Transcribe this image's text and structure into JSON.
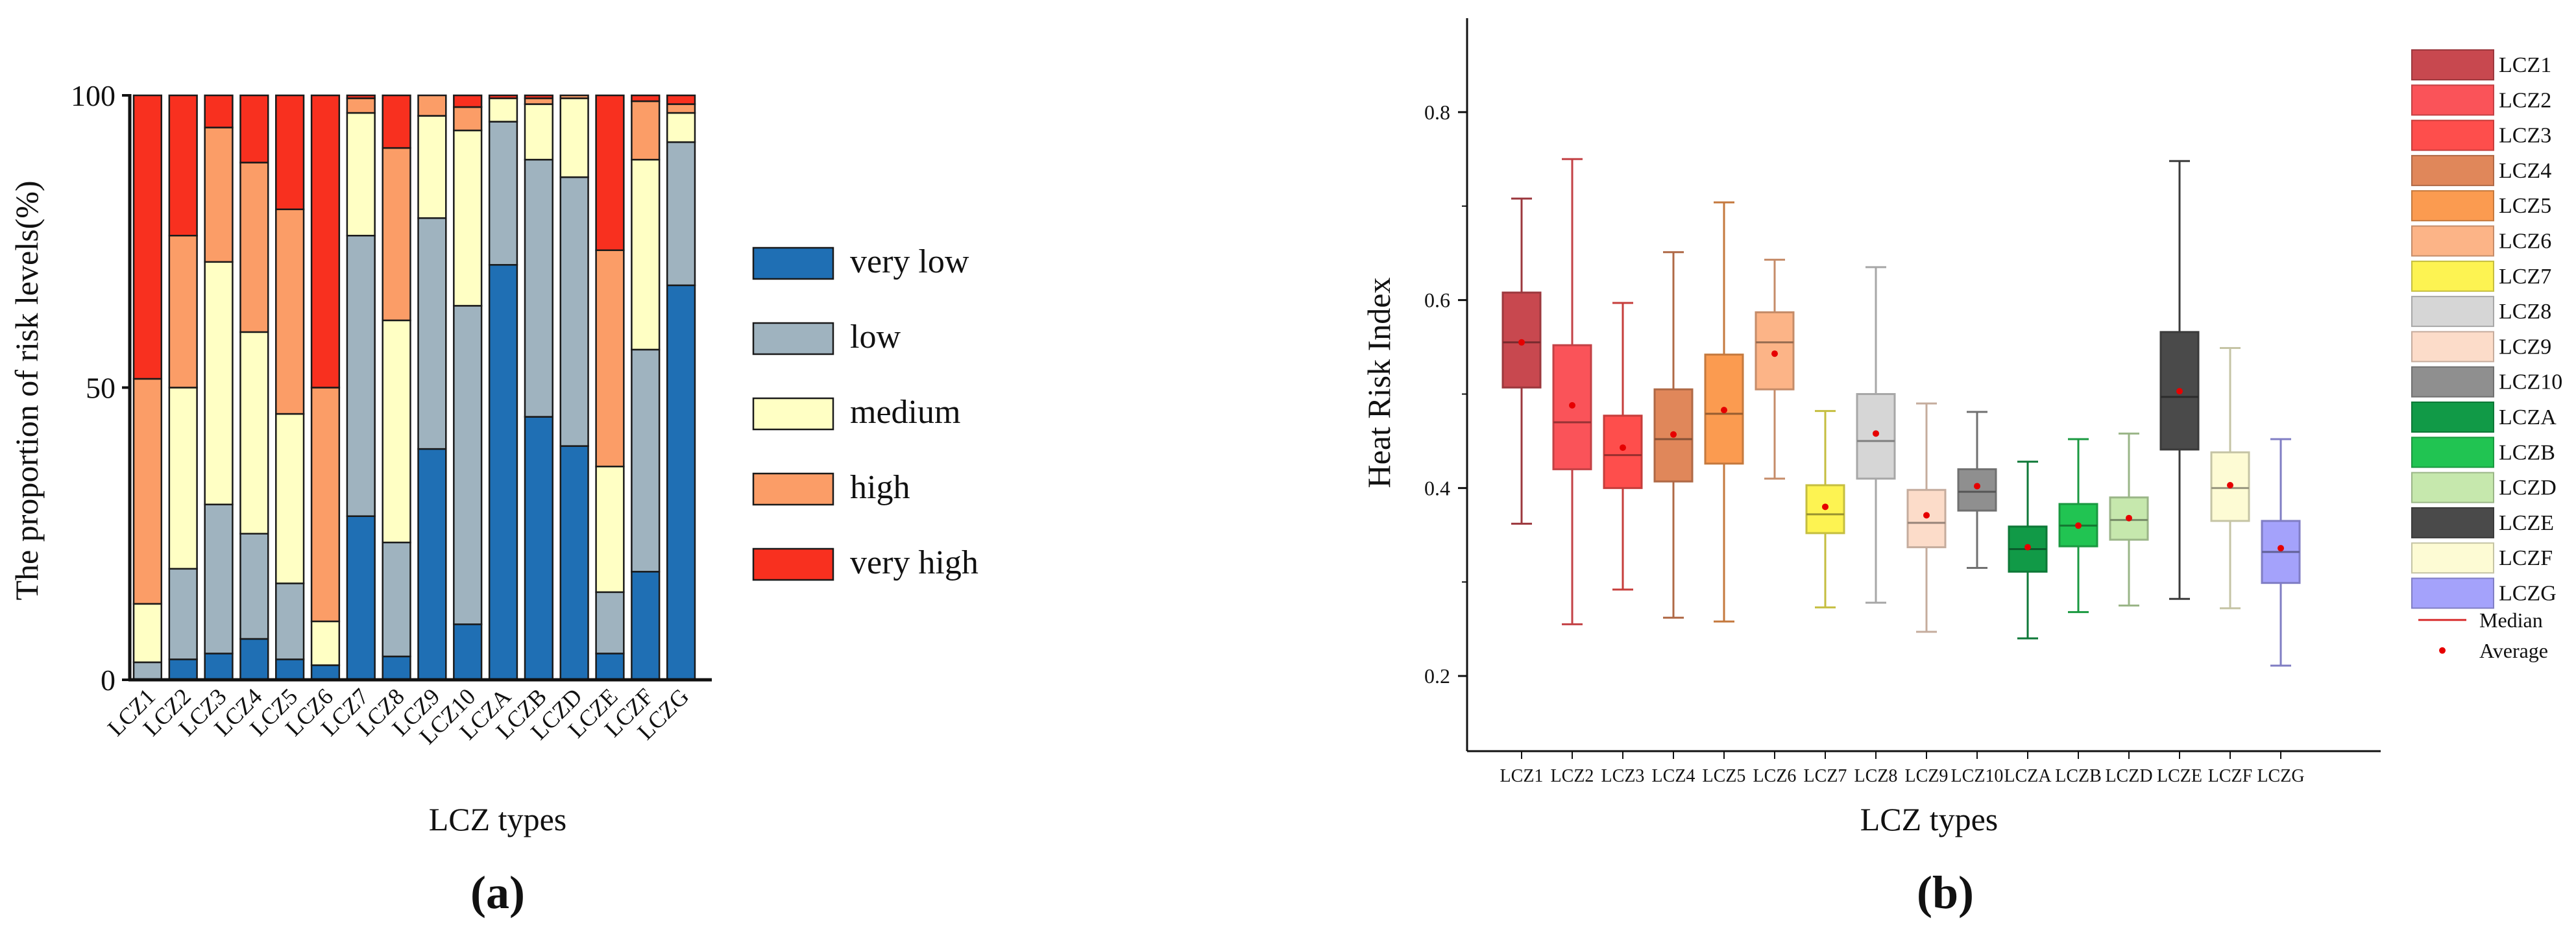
{
  "chart_data": [
    {
      "id": "a",
      "type": "bar",
      "stacked": true,
      "panel_label": "(a)",
      "title": "",
      "xlabel": "LCZ types",
      "ylabel": "The proportion of risk levels(%)",
      "ylim": [
        0,
        100
      ],
      "yticks": [
        0,
        50,
        100
      ],
      "categories": [
        "LCZ1",
        "LCZ2",
        "LCZ3",
        "LCZ4",
        "LCZ5",
        "LCZ6",
        "LCZ7",
        "LCZ8",
        "LCZ9",
        "LCZ10",
        "LCZA",
        "LCZB",
        "LCZD",
        "LCZE",
        "LCZF",
        "LCZG"
      ],
      "series": [
        {
          "name": "very low",
          "color": "#1f6fb4",
          "values": [
            0,
            3.5,
            4.5,
            7,
            3.5,
            2.5,
            28,
            4,
            39.5,
            9.5,
            71,
            45,
            40,
            4.5,
            18.5,
            67.5
          ]
        },
        {
          "name": "low",
          "color": "#9fb3bf",
          "values": [
            3,
            15.5,
            25.5,
            18,
            13,
            0,
            48,
            19.5,
            39.5,
            54.5,
            24.5,
            44,
            46,
            10.5,
            38,
            24.5
          ]
        },
        {
          "name": "medium",
          "color": "#ffffc4",
          "values": [
            10,
            31,
            41.5,
            34.5,
            29,
            7.5,
            21,
            38,
            17.5,
            30,
            4,
            9.5,
            13.5,
            21.5,
            32.5,
            5
          ]
        },
        {
          "name": "high",
          "color": "#fb9d67",
          "values": [
            38.5,
            26,
            23,
            29,
            35,
            40,
            2.5,
            29.5,
            3.5,
            4,
            0,
            1,
            0.5,
            37,
            10,
            1.5
          ]
        },
        {
          "name": "very high",
          "color": "#f8301f",
          "values": [
            48.5,
            24,
            5.5,
            11.5,
            19.5,
            50,
            0.5,
            9,
            0,
            2,
            0.5,
            0.5,
            0,
            26.5,
            1,
            1.5
          ]
        }
      ],
      "legend": {
        "position": "right",
        "entries": [
          "very low",
          "low",
          "medium",
          "high",
          "very high"
        ]
      }
    },
    {
      "id": "b",
      "type": "box",
      "panel_label": "(b)",
      "title": "",
      "xlabel": "LCZ types",
      "ylabel": "Heat Risk Index",
      "ylim": [
        0.12,
        0.9
      ],
      "yticks": [
        "0.2",
        "0.4",
        "0.6",
        "0.8"
      ],
      "categories": [
        "LCZ1",
        "LCZ2",
        "LCZ3",
        "LCZ4",
        "LCZ5",
        "LCZ6",
        "LCZ7",
        "LCZ8",
        "LCZ9",
        "LCZ10",
        "LCZA",
        "LCZB",
        "LCZD",
        "LCZE",
        "LCZF",
        "LCZG"
      ],
      "boxes": [
        {
          "name": "LCZ1",
          "color": "#c8484f",
          "whisker_low": 0.362,
          "q1": 0.507,
          "median": 0.555,
          "q3": 0.608,
          "whisker_high": 0.708,
          "mean": 0.555
        },
        {
          "name": "LCZ2",
          "color": "#fa5359",
          "whisker_low": 0.255,
          "q1": 0.42,
          "median": 0.47,
          "q3": 0.552,
          "whisker_high": 0.75,
          "mean": 0.488
        },
        {
          "name": "LCZ3",
          "color": "#fe4e4c",
          "whisker_low": 0.292,
          "q1": 0.4,
          "median": 0.435,
          "q3": 0.477,
          "whisker_high": 0.597,
          "mean": 0.443
        },
        {
          "name": "LCZ4",
          "color": "#e0875a",
          "whisker_low": 0.262,
          "q1": 0.407,
          "median": 0.452,
          "q3": 0.505,
          "whisker_high": 0.651,
          "mean": 0.457
        },
        {
          "name": "LCZ5",
          "color": "#fb9b50",
          "whisker_low": 0.258,
          "q1": 0.426,
          "median": 0.479,
          "q3": 0.542,
          "whisker_high": 0.704,
          "mean": 0.483
        },
        {
          "name": "LCZ6",
          "color": "#fcb487",
          "whisker_low": 0.41,
          "q1": 0.505,
          "median": 0.555,
          "q3": 0.587,
          "whisker_high": 0.643,
          "mean": 0.543
        },
        {
          "name": "LCZ7",
          "color": "#fdf352",
          "whisker_low": 0.273,
          "q1": 0.352,
          "median": 0.372,
          "q3": 0.403,
          "whisker_high": 0.482,
          "mean": 0.38
        },
        {
          "name": "LCZ8",
          "color": "#d6d6d6",
          "whisker_low": 0.278,
          "q1": 0.41,
          "median": 0.45,
          "q3": 0.5,
          "whisker_high": 0.635,
          "mean": 0.458
        },
        {
          "name": "LCZ9",
          "color": "#fcdcc9",
          "whisker_low": 0.247,
          "q1": 0.337,
          "median": 0.363,
          "q3": 0.398,
          "whisker_high": 0.49,
          "mean": 0.371
        },
        {
          "name": "LCZ10",
          "color": "#8f8f8f",
          "whisker_low": 0.315,
          "q1": 0.376,
          "median": 0.396,
          "q3": 0.42,
          "whisker_high": 0.481,
          "mean": 0.402
        },
        {
          "name": "LCZA",
          "color": "#119a47",
          "whisker_low": 0.24,
          "q1": 0.311,
          "median": 0.335,
          "q3": 0.359,
          "whisker_high": 0.428,
          "mean": 0.337
        },
        {
          "name": "LCZB",
          "color": "#21c452",
          "whisker_low": 0.268,
          "q1": 0.338,
          "median": 0.36,
          "q3": 0.383,
          "whisker_high": 0.452,
          "mean": 0.36
        },
        {
          "name": "LCZD",
          "color": "#c6e8ad",
          "whisker_low": 0.275,
          "q1": 0.345,
          "median": 0.366,
          "q3": 0.39,
          "whisker_high": 0.458,
          "mean": 0.368
        },
        {
          "name": "LCZE",
          "color": "#4a4a4a",
          "whisker_low": 0.282,
          "q1": 0.441,
          "median": 0.497,
          "q3": 0.566,
          "whisker_high": 0.748,
          "mean": 0.503
        },
        {
          "name": "LCZF",
          "color": "#fdfbd4",
          "whisker_low": 0.272,
          "q1": 0.365,
          "median": 0.4,
          "q3": 0.438,
          "whisker_high": 0.549,
          "mean": 0.403
        },
        {
          "name": "LCZG",
          "color": "#a4a2fb",
          "whisker_low": 0.211,
          "q1": 0.299,
          "median": 0.332,
          "q3": 0.365,
          "whisker_high": 0.452,
          "mean": 0.336
        }
      ],
      "legend": {
        "position": "right",
        "entries": [
          "LCZ1",
          "LCZ2",
          "LCZ3",
          "LCZ4",
          "LCZ5",
          "LCZ6",
          "LCZ7",
          "LCZ8",
          "LCZ9",
          "LCZ10",
          "LCZA",
          "LCZB",
          "LCZD",
          "LCZE",
          "LCZF",
          "LCZG"
        ],
        "median_label": "Median",
        "average_label": "Average",
        "median_color": "#d82e2e",
        "average_color": "#e60000"
      }
    }
  ]
}
